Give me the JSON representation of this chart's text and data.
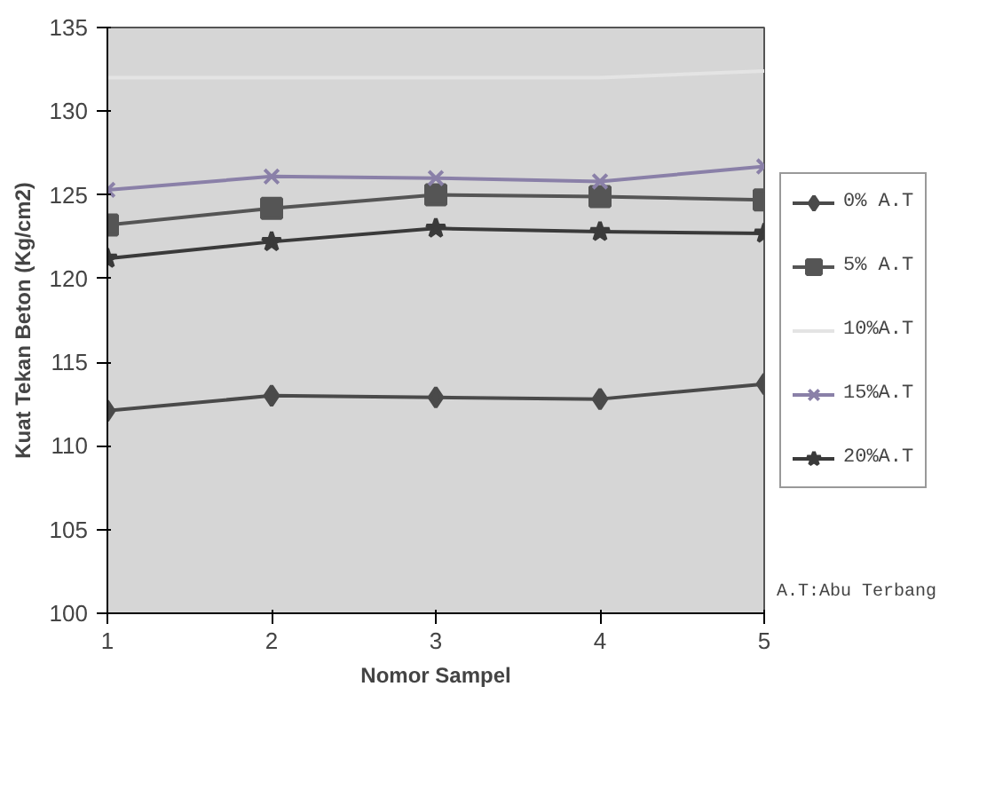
{
  "chart_data": {
    "type": "line",
    "xlabel": "Nomor Sampel",
    "ylabel": "Kuat Tekan Beton (Kg/cm2)",
    "x": [
      1,
      2,
      3,
      4,
      5
    ],
    "xlim": [
      1,
      5
    ],
    "xticks": [
      1,
      2,
      3,
      4,
      5
    ],
    "ylim": [
      100,
      135
    ],
    "yticks": [
      100,
      105,
      110,
      115,
      120,
      125,
      130,
      135
    ],
    "grid": false,
    "legend": "right",
    "line_style": "solid",
    "series": [
      {
        "name": "0% A.T",
        "color": "#4a4a4a",
        "marker": "diamond",
        "values": [
          112.1,
          113,
          112.9,
          112.8,
          113.7
        ]
      },
      {
        "name": "5% A.T",
        "color": "#555555",
        "marker": "square",
        "values": [
          123.2,
          124.2,
          125,
          124.9,
          124.7
        ]
      },
      {
        "name": "10%A.T",
        "color": "#e4e4e4",
        "marker": "none",
        "values": [
          132,
          132,
          132,
          132,
          132.4
        ]
      },
      {
        "name": "15%A.T",
        "color": "#8a80a8",
        "marker": "cross",
        "values": [
          125.3,
          126.1,
          126,
          125.8,
          126.7
        ]
      },
      {
        "name": "20%A.T",
        "color": "#3a3a3a",
        "marker": "star",
        "values": [
          121.2,
          122.2,
          123,
          122.8,
          122.7
        ]
      }
    ],
    "annotations": [
      "A.T:Abu Terbang"
    ]
  }
}
